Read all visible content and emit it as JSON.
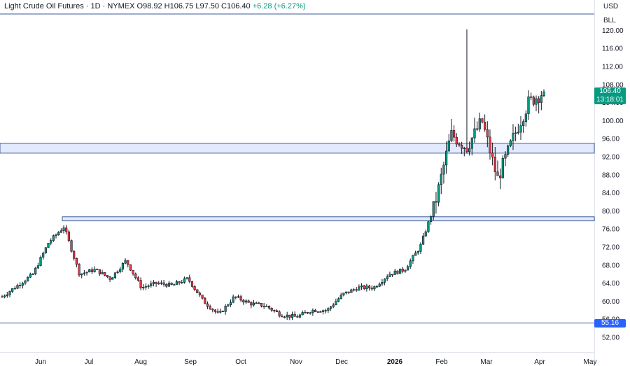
{
  "header": {
    "symbol": "Light Crude Oil Futures · 1D · NYMEX",
    "open": "O98.92",
    "high": "H106.75",
    "low": "L97.50",
    "close": "C106.40",
    "change": "+6.28 (+6.27%)"
  },
  "price_axis": {
    "currency": "USD",
    "unit": "BLL"
  },
  "last_price": {
    "value": "106.40",
    "countdown": "13:18:01",
    "color": "#089981"
  },
  "low_marker": {
    "value": "55.16",
    "color": "#2962ff"
  },
  "colors": {
    "up": "#089981",
    "down": "#f23645",
    "wick": "#131722",
    "zone_fill": "#e3eafd",
    "zone_line": "#3d5a99",
    "grid": "#f0f3fa"
  },
  "chart_data": {
    "type": "candlestick",
    "ylim": [
      50,
      122
    ],
    "y_ticks": [
      52,
      56,
      60,
      64,
      68,
      72,
      76,
      80,
      84,
      88,
      92,
      96,
      100,
      104,
      108,
      112,
      116,
      120
    ],
    "y_tick_labels": [
      "52.00",
      "56.00",
      "60.00",
      "64.00",
      "68.00",
      "72.00",
      "76.00",
      "80.00",
      "84.00",
      "88.00",
      "92.00",
      "96.00",
      "100.00",
      "104.00",
      "108.00",
      "112.00",
      "116.00",
      "120.00"
    ],
    "x_labels": [
      "Jun",
      "Jul",
      "Aug",
      "Sep",
      "Oct",
      "Nov",
      "Dec",
      "2026",
      "Feb",
      "Mar",
      "Apr",
      "May"
    ],
    "zones": [
      {
        "low": 92.8,
        "high": 95.0
      },
      {
        "low": 77.8,
        "high": 78.7
      }
    ],
    "levels": [
      120.2,
      55.16
    ],
    "anchors": [
      {
        "month": "May-start",
        "price": 61
      },
      {
        "month": "May",
        "price": 63.5
      },
      {
        "month": "Jun-mid",
        "price": 66
      },
      {
        "month": "Jun-late",
        "price": 73
      },
      {
        "month": "Jun-peak",
        "price": 76.5
      },
      {
        "month": "Jun-end",
        "price": 66
      },
      {
        "month": "Jul",
        "price": 67
      },
      {
        "month": "Jul-late",
        "price": 65
      },
      {
        "month": "Aug",
        "price": 69
      },
      {
        "month": "Aug-mid",
        "price": 63
      },
      {
        "month": "Sep",
        "price": 64
      },
      {
        "month": "Sep-late",
        "price": 63.5
      },
      {
        "month": "Oct",
        "price": 65
      },
      {
        "month": "Oct-mid",
        "price": 60
      },
      {
        "month": "Oct-late",
        "price": 57
      },
      {
        "month": "Nov",
        "price": 61
      },
      {
        "month": "Nov-mid",
        "price": 59.5
      },
      {
        "month": "Dec",
        "price": 59
      },
      {
        "month": "Dec-mid",
        "price": 57
      },
      {
        "month": "Dec-late",
        "price": 56.5
      },
      {
        "month": "Jan",
        "price": 58
      },
      {
        "month": "Jan-mid",
        "price": 58
      },
      {
        "month": "Jan-late",
        "price": 61.5
      },
      {
        "month": "Feb",
        "price": 63
      },
      {
        "month": "Feb-mid",
        "price": 63
      },
      {
        "month": "Feb-late",
        "price": 66
      },
      {
        "month": "Feb-end",
        "price": 67
      },
      {
        "month": "Mar-start",
        "price": 72
      },
      {
        "month": "Mar",
        "price": 82
      },
      {
        "month": "Mar-peak",
        "price": 97
      },
      {
        "month": "Mar-mid",
        "price": 94
      },
      {
        "month": "Mar-late",
        "price": 100
      },
      {
        "month": "Mar-end",
        "price": 87
      },
      {
        "month": "Apr-early",
        "price": 96
      },
      {
        "month": "Apr",
        "price": 104
      },
      {
        "month": "Apr-now",
        "price": 106.4
      }
    ]
  }
}
